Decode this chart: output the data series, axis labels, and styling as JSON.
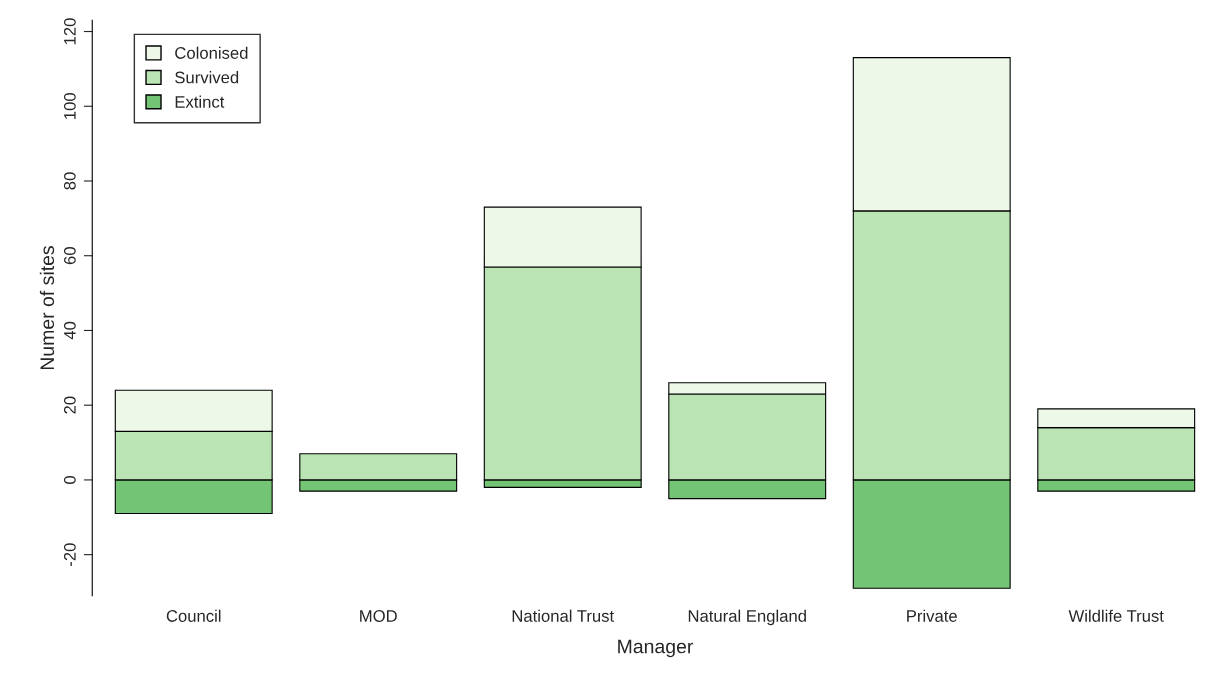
{
  "chart_data": {
    "type": "bar",
    "stacked": true,
    "xlabel": "Manager",
    "ylabel": "Numer of sites",
    "categories": [
      "Council",
      "MOD",
      "National Trust",
      "Natural England",
      "Private",
      "Wildlife Trust"
    ],
    "series": [
      {
        "name": "Extinct",
        "color": "#74c476",
        "values": [
          -9,
          -3,
          -2,
          -5,
          -29,
          -3
        ]
      },
      {
        "name": "Survived",
        "color": "#bae4b3",
        "values": [
          13,
          7,
          57,
          23,
          72,
          14
        ]
      },
      {
        "name": "Colonised",
        "color": "#edf8e9",
        "values": [
          11,
          null,
          16,
          3,
          41,
          5
        ]
      }
    ],
    "ylim": [
      -31,
      123
    ],
    "yticks": [
      -20,
      0,
      20,
      40,
      60,
      80,
      100,
      120
    ],
    "grid": false,
    "legend": "top left"
  }
}
